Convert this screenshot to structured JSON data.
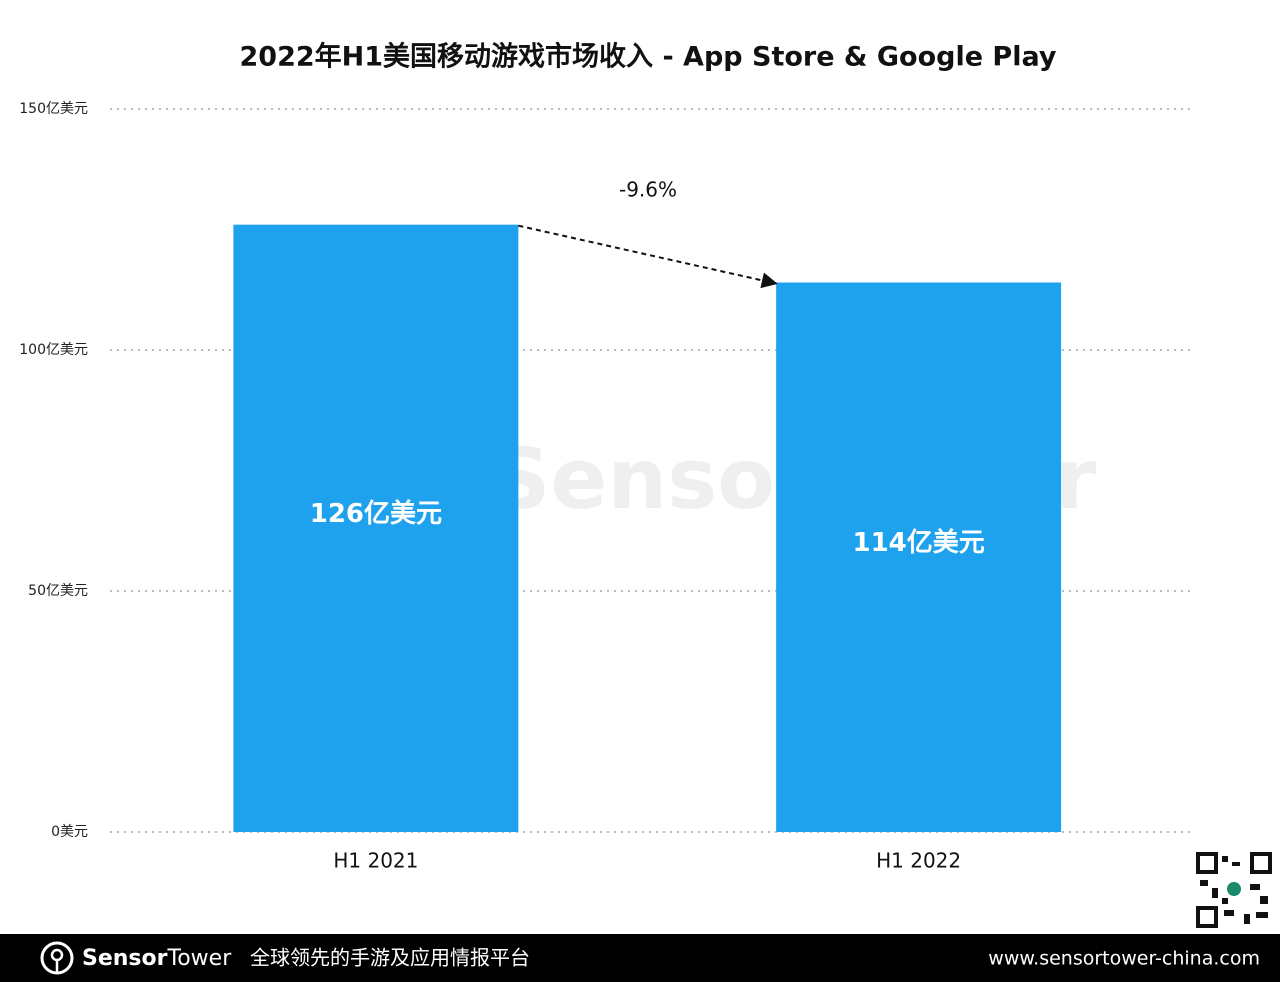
{
  "chart_data": {
    "type": "bar",
    "title": "2022年H1美国移动游戏市场收入 - App Store & Google Play",
    "categories": [
      "H1 2021",
      "H1 2022"
    ],
    "values": [
      126,
      114
    ],
    "value_labels": [
      "126亿美元",
      "114亿美元"
    ],
    "color": "#1fa2ee",
    "ylim": [
      0,
      150
    ],
    "yticks": [
      {
        "value": 0,
        "label": "0美元"
      },
      {
        "value": 50,
        "label": "50亿美元"
      },
      {
        "value": 100,
        "label": "100亿美元"
      },
      {
        "value": 150,
        "label": "150亿美元"
      }
    ],
    "grid": true,
    "annotation": "-9.6%",
    "watermark": "SensorTower"
  },
  "footer": {
    "brand_bold": "Sensor",
    "brand_light": "Tower",
    "slogan": "全球领先的手游及应用情报平台",
    "url": "www.sensortower-china.com"
  }
}
